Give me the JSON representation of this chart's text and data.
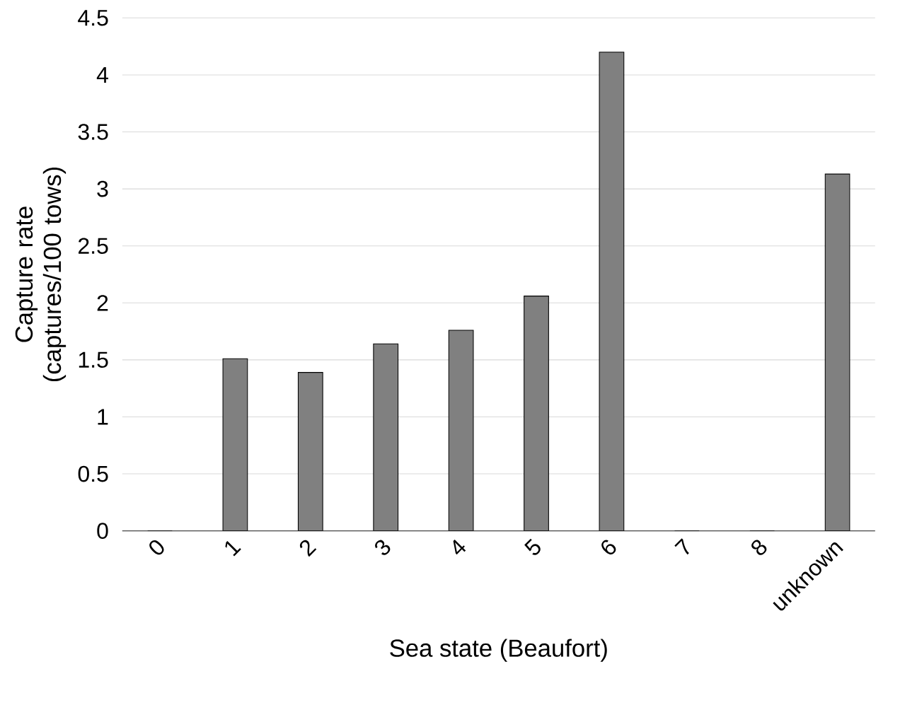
{
  "chart_data": {
    "type": "bar",
    "xlabel": "Sea state (Beaufort)",
    "ylabel": "Capture rate (captures/100 tows)",
    "categories": [
      "0",
      "1",
      "2",
      "3",
      "4",
      "5",
      "6",
      "7",
      "8",
      "unknown"
    ],
    "values": [
      0,
      1.51,
      1.39,
      1.64,
      1.76,
      2.06,
      4.2,
      0,
      0,
      3.13
    ],
    "color": "#808080",
    "ylim": [
      0,
      4.5
    ],
    "yticks": [
      0,
      0.5,
      1,
      1.5,
      2,
      2.5,
      3,
      3.5,
      4,
      4.5
    ],
    "grid": "y"
  }
}
